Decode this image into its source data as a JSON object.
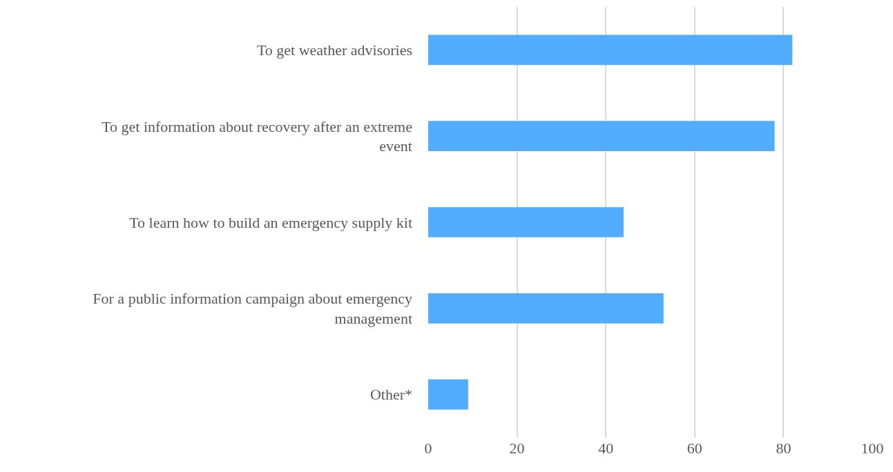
{
  "chart_data": {
    "type": "bar",
    "orientation": "horizontal",
    "categories": [
      "To get weather advisories",
      "To get information about recovery after an extreme event",
      "To learn how to build an emergency supply kit",
      "For a public information campaign about emergency management",
      "Other*"
    ],
    "values": [
      82,
      78,
      44,
      53,
      9
    ],
    "color": "#52acff",
    "xlim": [
      0,
      100
    ],
    "xticks": [
      0,
      20,
      40,
      60,
      80,
      100
    ],
    "grid": "x"
  }
}
